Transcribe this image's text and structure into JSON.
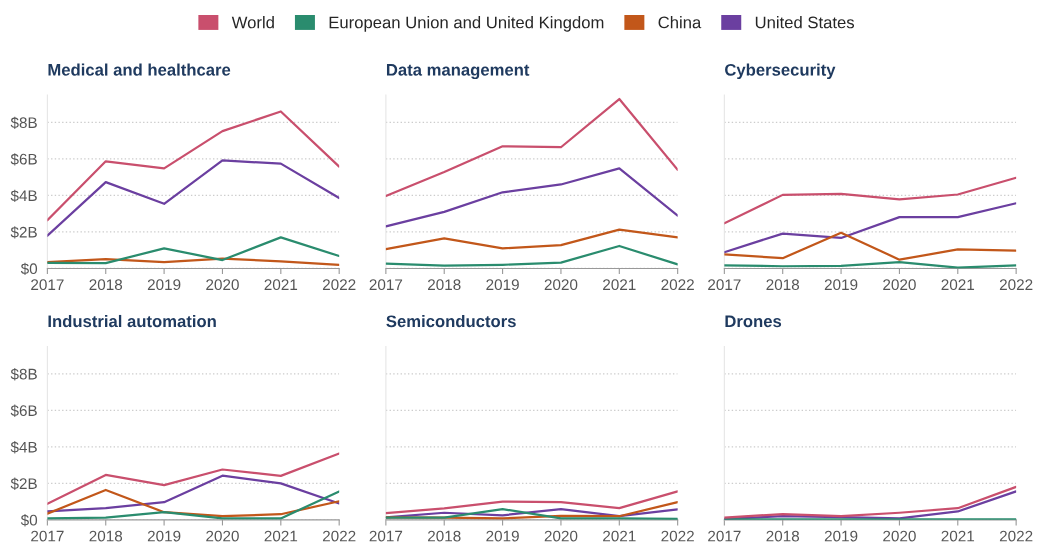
{
  "chart_data": [
    {
      "type": "line",
      "title": "Medical and healthcare",
      "x": [
        2017,
        2018,
        2019,
        2020,
        2021,
        2022
      ],
      "xlim": [
        2017,
        2022
      ],
      "xticks": [
        2017,
        2018,
        2019,
        2020,
        2021,
        2022
      ],
      "ylim": [
        0,
        9.5
      ],
      "yticks": [
        {
          "value": 0,
          "label": "$0"
        },
        {
          "value": 2,
          "label": "$2B"
        },
        {
          "value": 4,
          "label": "$4B"
        },
        {
          "value": 6,
          "label": "$6B"
        },
        {
          "value": 8,
          "label": "$8B"
        }
      ],
      "grid": "y",
      "legend": "top",
      "series": [
        {
          "name": "World",
          "color": "#c94f6d",
          "values": [
            2.64,
            5.87,
            5.48,
            7.52,
            8.6,
            5.58
          ]
        },
        {
          "name": "European Union and United Kingdom",
          "color": "#2a8c6e",
          "values": [
            0.31,
            0.29,
            1.1,
            0.46,
            1.7,
            0.68
          ]
        },
        {
          "name": "China",
          "color": "#c2571a",
          "values": [
            0.34,
            0.51,
            0.34,
            0.54,
            0.39,
            0.2
          ]
        },
        {
          "name": "United States",
          "color": "#6b3fa0",
          "values": [
            1.79,
            4.73,
            3.54,
            5.92,
            5.74,
            3.86
          ]
        }
      ]
    },
    {
      "type": "line",
      "title": "Data management",
      "x": [
        2017,
        2018,
        2019,
        2020,
        2021,
        2022
      ],
      "xlim": [
        2017,
        2022
      ],
      "xticks": [
        2017,
        2018,
        2019,
        2020,
        2021,
        2022
      ],
      "ylim": [
        0,
        9.5
      ],
      "yticks": [
        {
          "value": 0,
          "label": "$0"
        },
        {
          "value": 2,
          "label": "$2B"
        },
        {
          "value": 4,
          "label": "$4B"
        },
        {
          "value": 6,
          "label": "$6B"
        },
        {
          "value": 8,
          "label": "$8B"
        }
      ],
      "grid": "y",
      "tick_labels": "x",
      "series": [
        {
          "name": "World",
          "color": "#c94f6d",
          "values": [
            3.97,
            5.28,
            6.69,
            6.64,
            9.28,
            5.4
          ]
        },
        {
          "name": "European Union and United Kingdom",
          "color": "#2a8c6e",
          "values": [
            0.26,
            0.15,
            0.2,
            0.32,
            1.23,
            0.22
          ]
        },
        {
          "name": "China",
          "color": "#c2571a",
          "values": [
            1.06,
            1.65,
            1.1,
            1.28,
            2.13,
            1.7
          ]
        },
        {
          "name": "United States",
          "color": "#6b3fa0",
          "values": [
            2.3,
            3.1,
            4.17,
            4.6,
            5.48,
            2.89
          ]
        }
      ]
    },
    {
      "type": "line",
      "title": "Cybersecurity",
      "x": [
        2017,
        2018,
        2019,
        2020,
        2021,
        2022
      ],
      "xlim": [
        2017,
        2022
      ],
      "xticks": [
        2017,
        2018,
        2019,
        2020,
        2021,
        2022
      ],
      "ylim": [
        0,
        9.5
      ],
      "yticks": [
        {
          "value": 0,
          "label": "$0"
        },
        {
          "value": 2,
          "label": "$2B"
        },
        {
          "value": 4,
          "label": "$4B"
        },
        {
          "value": 6,
          "label": "$6B"
        },
        {
          "value": 8,
          "label": "$8B"
        }
      ],
      "grid": "y",
      "tick_labels": "x",
      "series": [
        {
          "name": "World",
          "color": "#c94f6d",
          "values": [
            2.47,
            4.03,
            4.09,
            3.78,
            4.05,
            4.97
          ]
        },
        {
          "name": "European Union and United Kingdom",
          "color": "#2a8c6e",
          "values": [
            0.17,
            0.12,
            0.14,
            0.34,
            0.05,
            0.17
          ]
        },
        {
          "name": "China",
          "color": "#c2571a",
          "values": [
            0.77,
            0.56,
            1.96,
            0.48,
            1.04,
            0.97
          ]
        },
        {
          "name": "United States",
          "color": "#6b3fa0",
          "values": [
            0.89,
            1.91,
            1.67,
            2.81,
            2.81,
            3.57
          ]
        }
      ]
    },
    {
      "type": "line",
      "title": "Industrial automation",
      "x": [
        2017,
        2018,
        2019,
        2020,
        2021,
        2022
      ],
      "xlim": [
        2017,
        2022
      ],
      "xticks": [
        2017,
        2018,
        2019,
        2020,
        2021,
        2022
      ],
      "ylim": [
        0,
        9.5
      ],
      "yticks": [
        {
          "value": 0,
          "label": "$0"
        },
        {
          "value": 2,
          "label": "$2B"
        },
        {
          "value": 4,
          "label": "$4B"
        },
        {
          "value": 6,
          "label": "$6B"
        },
        {
          "value": 8,
          "label": "$8B"
        }
      ],
      "grid": "y",
      "series": [
        {
          "name": "World",
          "color": "#c94f6d",
          "values": [
            0.88,
            2.46,
            1.9,
            2.76,
            2.41,
            3.64
          ]
        },
        {
          "name": "European Union and United Kingdom",
          "color": "#2a8c6e",
          "values": [
            0.08,
            0.12,
            0.42,
            0.08,
            0.08,
            1.56
          ]
        },
        {
          "name": "China",
          "color": "#c2571a",
          "values": [
            0.34,
            1.64,
            0.42,
            0.2,
            0.31,
            1.02
          ]
        },
        {
          "name": "United States",
          "color": "#6b3fa0",
          "values": [
            0.47,
            0.64,
            0.97,
            2.42,
            2.0,
            0.9
          ]
        }
      ]
    },
    {
      "type": "line",
      "title": "Semiconductors",
      "x": [
        2017,
        2018,
        2019,
        2020,
        2021,
        2022
      ],
      "xlim": [
        2017,
        2022
      ],
      "xticks": [
        2017,
        2018,
        2019,
        2020,
        2021,
        2022
      ],
      "ylim": [
        0,
        9.5
      ],
      "yticks": [
        {
          "value": 0,
          "label": "$0"
        },
        {
          "value": 2,
          "label": "$2B"
        },
        {
          "value": 4,
          "label": "$4B"
        },
        {
          "value": 6,
          "label": "$6B"
        },
        {
          "value": 8,
          "label": "$8B"
        }
      ],
      "grid": "y",
      "tick_labels": "x",
      "series": [
        {
          "name": "World",
          "color": "#c94f6d",
          "values": [
            0.37,
            0.63,
            1.0,
            0.97,
            0.64,
            1.56
          ]
        },
        {
          "name": "European Union and United Kingdom",
          "color": "#2a8c6e",
          "values": [
            0.12,
            0.12,
            0.59,
            0.08,
            0.08,
            0.05
          ]
        },
        {
          "name": "China",
          "color": "#c2571a",
          "values": [
            0.14,
            0.12,
            0.08,
            0.22,
            0.2,
            0.97
          ]
        },
        {
          "name": "United States",
          "color": "#6b3fa0",
          "values": [
            0.14,
            0.39,
            0.25,
            0.59,
            0.2,
            0.58
          ]
        }
      ]
    },
    {
      "type": "line",
      "title": "Drones",
      "x": [
        2017,
        2018,
        2019,
        2020,
        2021,
        2022
      ],
      "xlim": [
        2017,
        2022
      ],
      "xticks": [
        2017,
        2018,
        2019,
        2020,
        2021,
        2022
      ],
      "ylim": [
        0,
        9.5
      ],
      "yticks": [
        {
          "value": 0,
          "label": "$0"
        },
        {
          "value": 2,
          "label": "$2B"
        },
        {
          "value": 4,
          "label": "$4B"
        },
        {
          "value": 6,
          "label": "$6B"
        },
        {
          "value": 8,
          "label": "$8B"
        }
      ],
      "grid": "y",
      "tick_labels": "x",
      "series": [
        {
          "name": "World",
          "color": "#c94f6d",
          "values": [
            0.12,
            0.32,
            0.2,
            0.39,
            0.64,
            1.81
          ]
        },
        {
          "name": "European Union and United Kingdom",
          "color": "#2a8c6e",
          "values": [
            0.03,
            0.03,
            0.03,
            0.03,
            0.03,
            0.03
          ]
        },
        {
          "name": "China",
          "color": "#c2571a",
          "values": [
            null,
            null,
            null,
            null,
            null,
            null
          ]
        },
        {
          "name": "United States",
          "color": "#6b3fa0",
          "values": [
            0.05,
            0.2,
            0.15,
            0.08,
            0.46,
            1.56
          ]
        }
      ]
    }
  ]
}
